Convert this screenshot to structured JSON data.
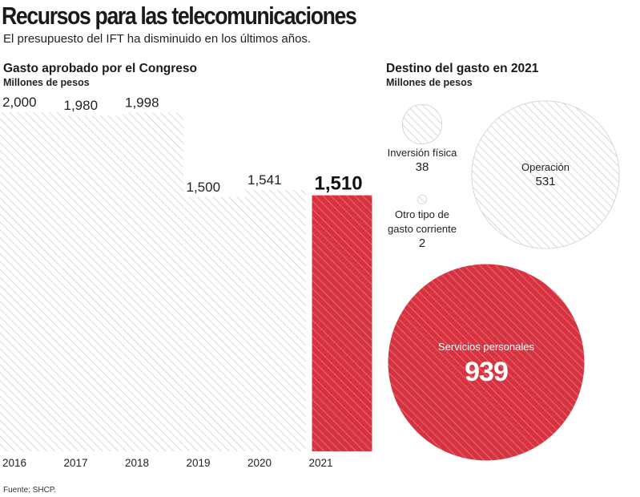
{
  "header": {
    "title": "Recursos para las telecomunicaciones",
    "subtitle": "El presupuesto del IFT ha disminuido en los últimos años."
  },
  "footer": {
    "source": "Fuente: SHCP."
  },
  "colors": {
    "highlight": "#d7323f",
    "hatch": "#c9c9c9",
    "text": "#1a1a1a"
  },
  "chart_data": [
    {
      "type": "bar",
      "title": "Gasto aprobado por el Congreso",
      "ylabel": "Millones de pesos",
      "categories": [
        "2016",
        "2017",
        "2018",
        "2019",
        "2020",
        "2021"
      ],
      "values": [
        2000,
        1980,
        1998,
        1500,
        1541,
        1510
      ],
      "labels": [
        "2,000",
        "1,980",
        "1,998",
        "1,500",
        "1,541",
        "1,510"
      ],
      "highlight_index": 5,
      "ylim": [
        0,
        2050
      ]
    },
    {
      "type": "bubble",
      "title": "Destino del gasto en 2021",
      "unit": "Millones de pesos",
      "items": [
        {
          "name": "Inversión física",
          "value": 38,
          "display": "38"
        },
        {
          "name": "Operación",
          "value": 531,
          "display": "531"
        },
        {
          "name_lines": [
            "Otro tipo de",
            "gasto corriente"
          ],
          "value": 2,
          "display": "2"
        },
        {
          "name": "Servicios personales",
          "value": 939,
          "display": "939",
          "highlight": true
        }
      ]
    }
  ]
}
